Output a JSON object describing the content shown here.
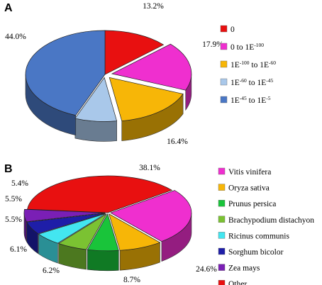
{
  "chart_data": [
    {
      "type": "pie",
      "panel": "A",
      "slices": [
        {
          "label": "0",
          "value": 13.2,
          "value_label": "13.2%",
          "color": "#e81010"
        },
        {
          "label": "0 to 1E-100",
          "value": 17.9,
          "value_label": "17.9%",
          "color": "#ef2fcf"
        },
        {
          "label": "1E-100 to 1E-60",
          "value": 16.4,
          "value_label": "16.4%",
          "color": "#f7b607"
        },
        {
          "label": "1E-60 to 1E-45",
          "value": 8.5,
          "value_label": "",
          "color": "#a9c8ea"
        },
        {
          "label": "1E-45 to 1E-5",
          "value": 44.0,
          "value_label": "44.0%",
          "color": "#4a77c5"
        }
      ],
      "legend": [
        {
          "base": "0",
          "sup": "",
          "mid": "",
          "sup2": ""
        },
        {
          "base": "0 to 1E",
          "sup": "-100",
          "mid": "",
          "sup2": ""
        },
        {
          "base": "1E",
          "sup": "-100",
          "mid": " to 1E",
          "sup2": "-60"
        },
        {
          "base": "1E",
          "sup": "-60",
          "mid": " to 1E",
          "sup2": "-45"
        },
        {
          "base": "1E",
          "sup": "-45",
          "mid": " to 1E",
          "sup2": "-5"
        }
      ]
    },
    {
      "type": "pie",
      "panel": "B",
      "slices": [
        {
          "label": "Other",
          "value": 38.1,
          "value_label": "38.1%",
          "color": "#e81010"
        },
        {
          "label": "Vitis vinifera",
          "value": 24.6,
          "value_label": "24.6%",
          "color": "#ef2fcf"
        },
        {
          "label": "Oryza sativa",
          "value": 8.7,
          "value_label": "8.7%",
          "color": "#f7b607"
        },
        {
          "label": "Prunus persica",
          "value": 6.2,
          "value_label": "6.2%",
          "color": "#19c43a"
        },
        {
          "label": "Brachypodium distachyon",
          "value": 6.1,
          "value_label": "6.1%",
          "color": "#7bc232"
        },
        {
          "label": "Ricinus communis",
          "value": 5.5,
          "value_label": "5.5%",
          "color": "#43e6f0"
        },
        {
          "label": "Sorghum bicolor",
          "value": 5.5,
          "value_label": "5.5%",
          "color": "#1e1ea8"
        },
        {
          "label": "Zea mays",
          "value": 5.4,
          "value_label": "5.4%",
          "color": "#7a1fb5"
        }
      ],
      "legend": [
        "Vitis vinifera",
        "Oryza sativa",
        "Prunus persica",
        "Brachypodium distachyon",
        "Ricinus communis",
        "Sorghum bicolor",
        "Zea mays",
        "Other"
      ],
      "legend_colors": [
        "#ef2fcf",
        "#f7b607",
        "#19c43a",
        "#7bc232",
        "#43e6f0",
        "#1e1ea8",
        "#7a1fb5",
        "#e81010"
      ]
    }
  ]
}
